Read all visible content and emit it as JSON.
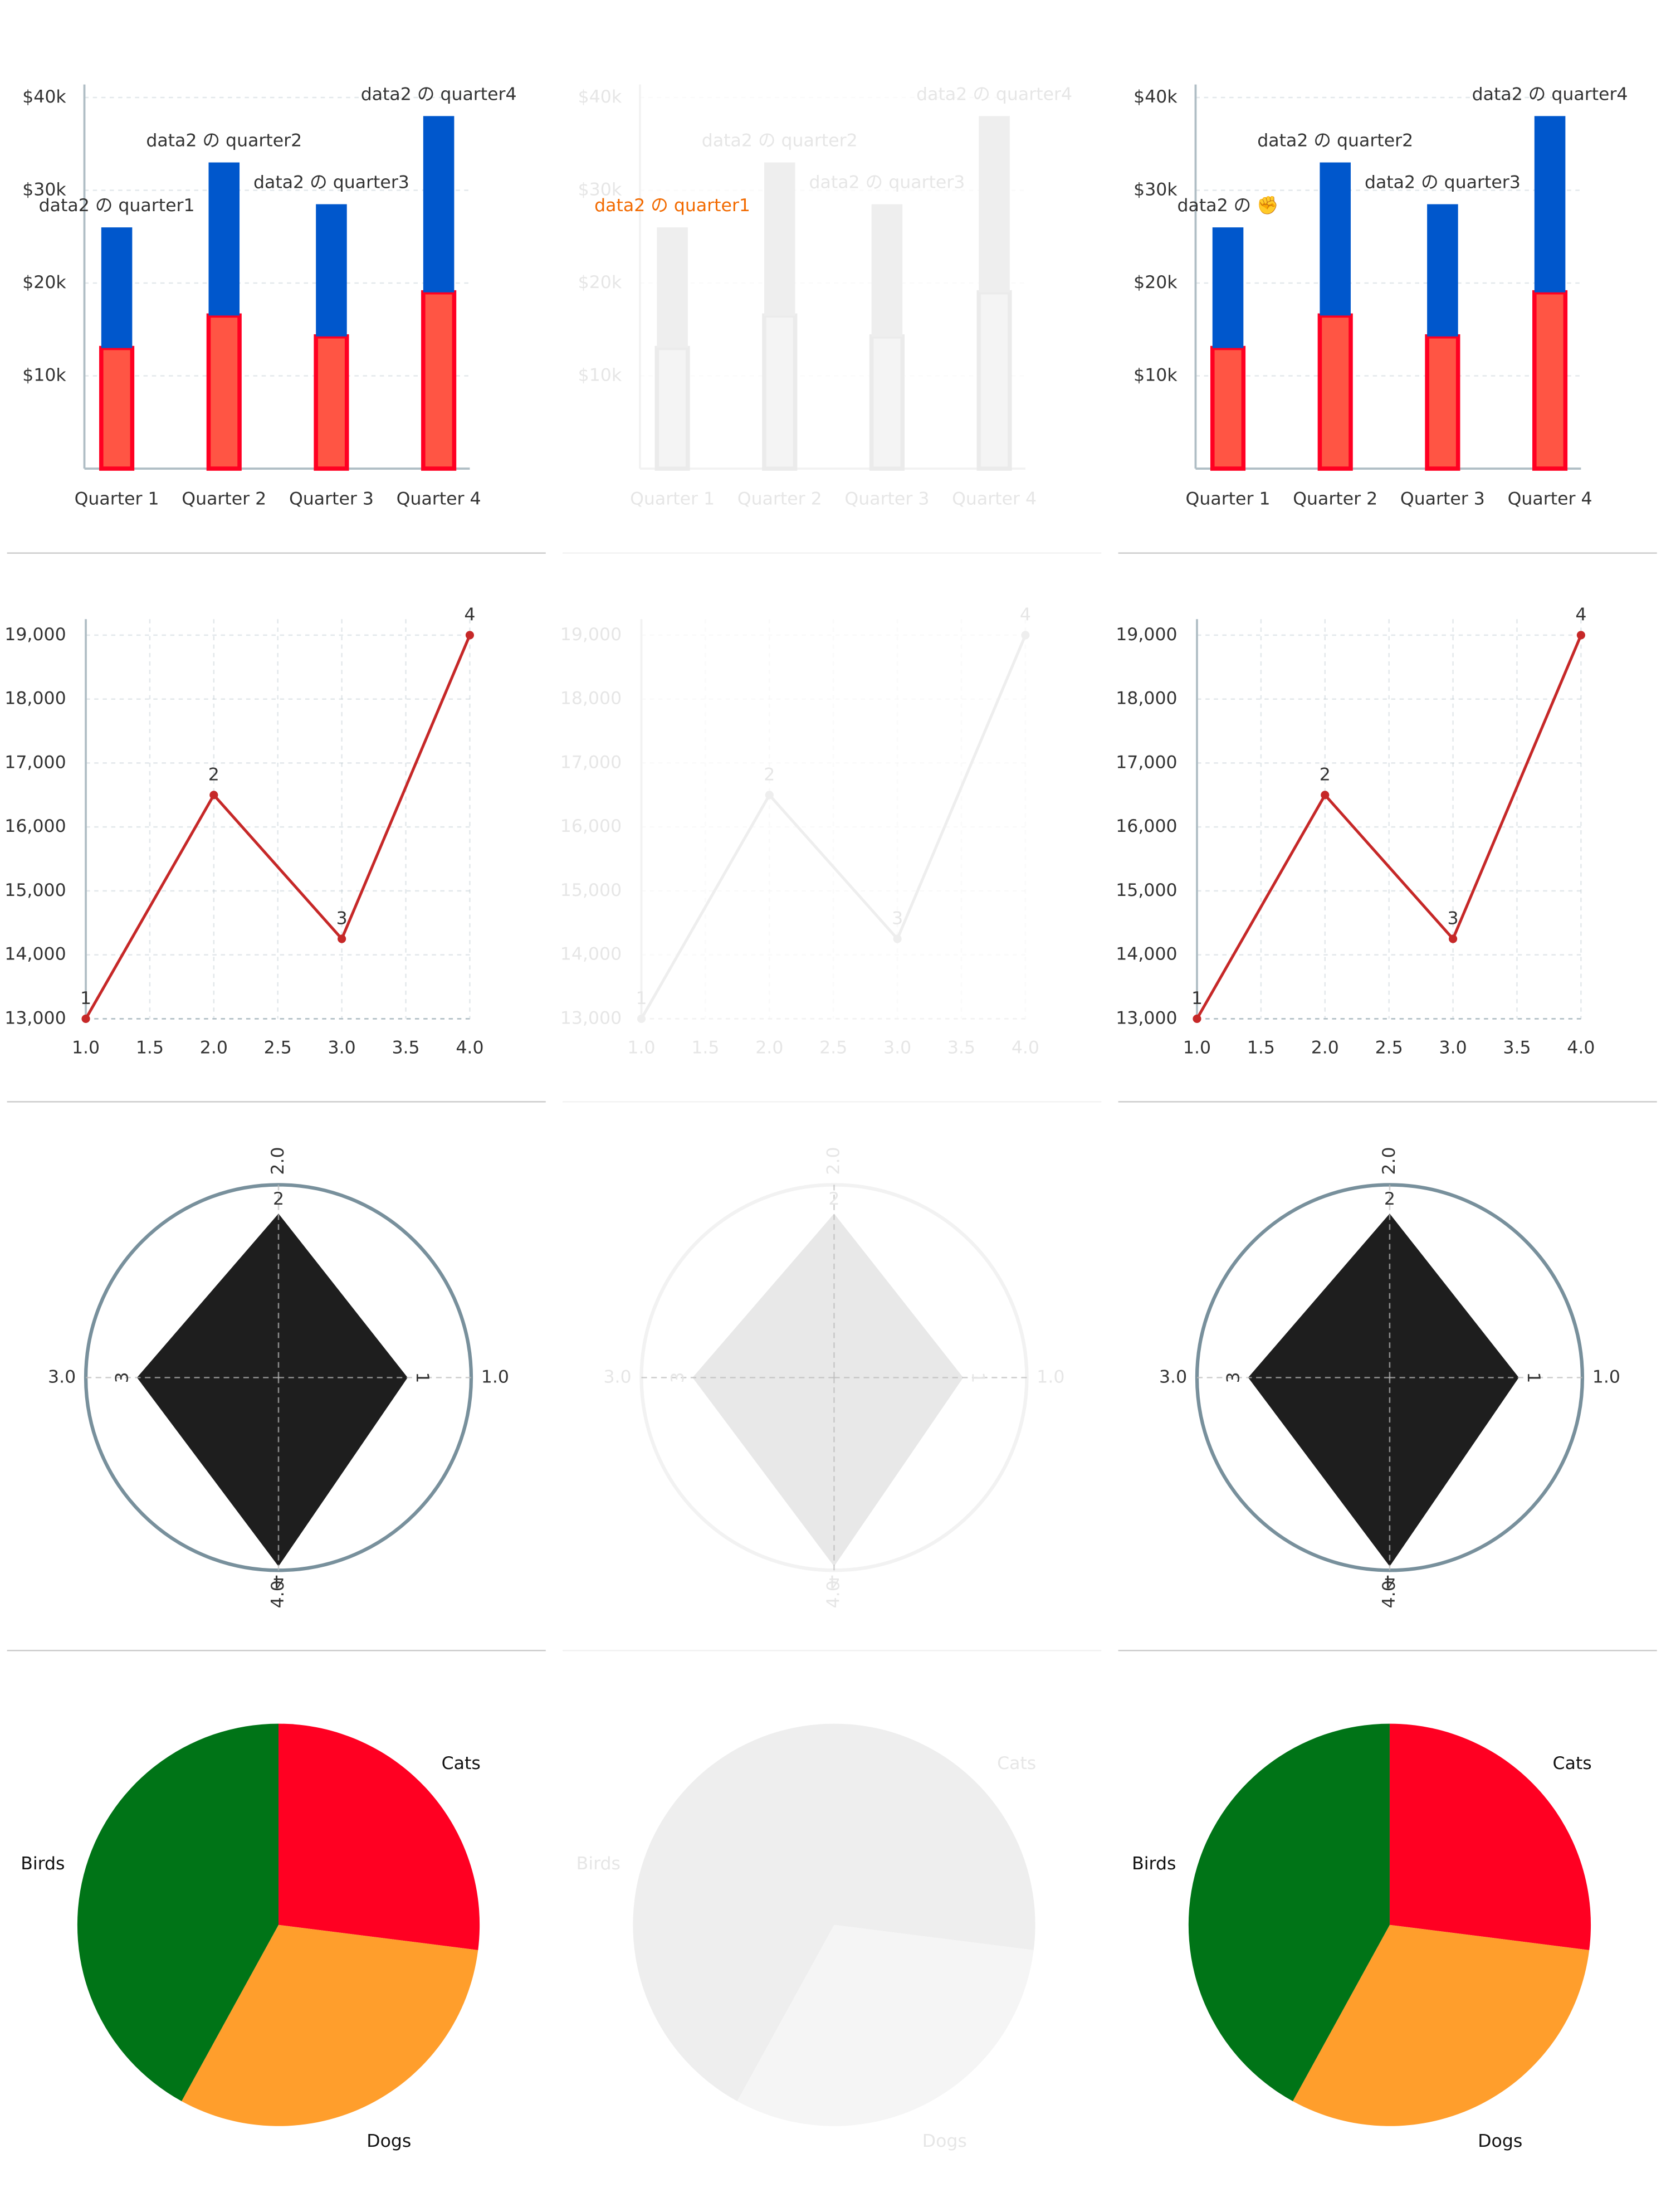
{
  "chart_data": [
    {
      "type": "bar",
      "categories": [
        "Quarter 1",
        "Quarter 2",
        "Quarter 3",
        "Quarter 4"
      ],
      "series": [
        {
          "color": "#ff5544",
          "stroke": "#ff0022",
          "values": [
            13000,
            16500,
            14250,
            19000
          ]
        },
        {
          "color": "#0057cc",
          "values": [
            13000,
            16500,
            14250,
            19000
          ]
        }
      ],
      "annotations": [
        "data2 の quarter1",
        "data2 の quarter2",
        "data2 の quarter3",
        "data2 の quarter4"
      ],
      "ylim": [
        0,
        41400
      ],
      "yticks": [
        {
          "value": 10000,
          "label": "$10k"
        },
        {
          "value": 20000,
          "label": "$20k"
        },
        {
          "value": 30000,
          "label": "$30k"
        },
        {
          "value": 40000,
          "label": "$40k"
        }
      ],
      "grid": true,
      "text_color": "#333333",
      "axis_color": "#b0bec5"
    },
    {
      "type": "bar",
      "categories": [
        "Quarter 1",
        "Quarter 2",
        "Quarter 3",
        "Quarter 4"
      ],
      "series": [
        {
          "color": "#f4f4f4",
          "stroke": "#ebebeb",
          "values": [
            13000,
            16500,
            14250,
            19000
          ]
        },
        {
          "color": "#eeeeee",
          "values": [
            13000,
            16500,
            14250,
            19000
          ]
        }
      ],
      "annotations": [
        "data2 の quarter1",
        "data2 の quarter2",
        "data2 の quarter3",
        "data2 の quarter4"
      ],
      "annotation_colors": [
        "#f26a00",
        "#e6e6e6",
        "#e6e6e6",
        "#e6e6e6"
      ],
      "ylim": [
        0,
        41400
      ],
      "yticks": [
        {
          "value": 10000,
          "label": "$10k"
        },
        {
          "value": 20000,
          "label": "$20k"
        },
        {
          "value": 30000,
          "label": "$30k"
        },
        {
          "value": 40000,
          "label": "$40k"
        }
      ],
      "grid": true,
      "text_color": "#e6e6e6",
      "axis_color": "#f2f2f2"
    },
    {
      "type": "bar",
      "categories": [
        "Quarter 1",
        "Quarter 2",
        "Quarter 3",
        "Quarter 4"
      ],
      "series": [
        {
          "color": "#ff5544",
          "stroke": "#ff0022",
          "values": [
            13000,
            16500,
            14250,
            19000
          ]
        },
        {
          "color": "#0057cc",
          "values": [
            13000,
            16500,
            14250,
            19000
          ]
        }
      ],
      "annotations": [
        "data2 の ✊",
        "data2 の quarter2",
        "data2 の quarter3",
        "data2 の quarter4"
      ],
      "ylim": [
        0,
        41400
      ],
      "yticks": [
        {
          "value": 10000,
          "label": "$10k"
        },
        {
          "value": 20000,
          "label": "$20k"
        },
        {
          "value": 30000,
          "label": "$30k"
        },
        {
          "value": 40000,
          "label": "$40k"
        }
      ],
      "grid": true,
      "text_color": "#333333",
      "axis_color": "#b0bec5"
    },
    {
      "type": "line",
      "x": [
        1,
        2,
        3,
        4
      ],
      "values": [
        13000,
        16500,
        14250,
        19000
      ],
      "point_labels": [
        "1",
        "2",
        "3",
        "4"
      ],
      "xlim": [
        1,
        4
      ],
      "xticks": [
        {
          "value": 1,
          "label": "1.0"
        },
        1.5,
        {
          "value": 2,
          "label": "2.0"
        },
        2.5,
        {
          "value": 3,
          "label": "3.0"
        },
        3.5,
        {
          "value": 4,
          "label": "4.0"
        }
      ],
      "ylim": [
        13000,
        19250
      ],
      "yticks": [
        {
          "value": 13000,
          "label": "13,000"
        },
        {
          "value": 14000,
          "label": "14,000"
        },
        {
          "value": 15000,
          "label": "15,000"
        },
        {
          "value": 16000,
          "label": "16,000"
        },
        {
          "value": 17000,
          "label": "17,000"
        },
        {
          "value": 18000,
          "label": "18,000"
        },
        {
          "value": 19000,
          "label": "19,000"
        }
      ],
      "color": "#c62828",
      "grid": true,
      "text_color": "#333333",
      "axis_color": "#b0bec5"
    },
    {
      "type": "line",
      "x": [
        1,
        2,
        3,
        4
      ],
      "values": [
        13000,
        16500,
        14250,
        19000
      ],
      "point_labels": [
        "1",
        "2",
        "3",
        "4"
      ],
      "xlim": [
        1,
        4
      ],
      "xticks": [
        {
          "value": 1,
          "label": "1.0"
        },
        1.5,
        {
          "value": 2,
          "label": "2.0"
        },
        2.5,
        {
          "value": 3,
          "label": "3.0"
        },
        3.5,
        {
          "value": 4,
          "label": "4.0"
        }
      ],
      "ylim": [
        13000,
        19250
      ],
      "yticks": [
        {
          "value": 13000,
          "label": "13,000"
        },
        {
          "value": 14000,
          "label": "14,000"
        },
        {
          "value": 15000,
          "label": "15,000"
        },
        {
          "value": 16000,
          "label": "16,000"
        },
        {
          "value": 17000,
          "label": "17,000"
        },
        {
          "value": 18000,
          "label": "18,000"
        },
        {
          "value": 19000,
          "label": "19,000"
        }
      ],
      "color": "#eeeeee",
      "grid": true,
      "text_color": "#e6e6e6",
      "axis_color": "#f2f2f2"
    },
    {
      "type": "line",
      "x": [
        1,
        2,
        3,
        4
      ],
      "values": [
        13000,
        16500,
        14250,
        19000
      ],
      "point_labels": [
        "1",
        "2",
        "3",
        "4"
      ],
      "xlim": [
        1,
        4
      ],
      "xticks": [
        {
          "value": 1,
          "label": "1.0"
        },
        1.5,
        {
          "value": 2,
          "label": "2.0"
        },
        2.5,
        {
          "value": 3,
          "label": "3.0"
        },
        3.5,
        {
          "value": 4,
          "label": "4.0"
        }
      ],
      "ylim": [
        13000,
        19250
      ],
      "yticks": [
        {
          "value": 13000,
          "label": "13,000"
        },
        {
          "value": 14000,
          "label": "14,000"
        },
        {
          "value": 15000,
          "label": "15,000"
        },
        {
          "value": 16000,
          "label": "16,000"
        },
        {
          "value": 17000,
          "label": "17,000"
        },
        {
          "value": 18000,
          "label": "18,000"
        },
        {
          "value": 19000,
          "label": "19,000"
        }
      ],
      "color": "#c62828",
      "grid": true,
      "text_color": "#333333",
      "axis_color": "#b0bec5"
    },
    {
      "type": "radar",
      "theta": [
        1,
        2,
        3,
        4
      ],
      "values": [
        13000,
        16500,
        14250,
        19000
      ],
      "point_labels": [
        "1",
        "2",
        "3",
        "4"
      ],
      "thetaticks": [
        {
          "value": 1,
          "label": "1.0"
        },
        {
          "value": 2,
          "label": "2.0"
        },
        {
          "value": 3,
          "label": "3.0"
        },
        {
          "value": 4,
          "label": "4.0"
        }
      ],
      "rlim": [
        0,
        19400
      ],
      "color": "#1e1e1e",
      "text_color": "#333333",
      "axis_color": "#78909c"
    },
    {
      "type": "radar",
      "theta": [
        1,
        2,
        3,
        4
      ],
      "values": [
        13000,
        16500,
        14250,
        19000
      ],
      "point_labels": [
        "1",
        "2",
        "3",
        "4"
      ],
      "thetaticks": [
        {
          "value": 1,
          "label": "1.0"
        },
        {
          "value": 2,
          "label": "2.0"
        },
        {
          "value": 3,
          "label": "3.0"
        },
        {
          "value": 4,
          "label": "4.0"
        }
      ],
      "rlim": [
        0,
        19400
      ],
      "color": "#e8e8e8",
      "text_color": "#e6e6e6",
      "axis_color": "#f2f2f2"
    },
    {
      "type": "radar",
      "theta": [
        1,
        2,
        3,
        4
      ],
      "values": [
        13000,
        16500,
        14250,
        19000
      ],
      "point_labels": [
        "1",
        "2",
        "3",
        "4"
      ],
      "thetaticks": [
        {
          "value": 1,
          "label": "1.0"
        },
        {
          "value": 2,
          "label": "2.0"
        },
        {
          "value": 3,
          "label": "3.0"
        },
        {
          "value": 4,
          "label": "4.0"
        }
      ],
      "rlim": [
        0,
        19400
      ],
      "color": "#1e1e1e",
      "text_color": "#333333",
      "axis_color": "#78909c"
    },
    {
      "type": "pie",
      "categories": [
        "Cats",
        "Dogs",
        "Birds"
      ],
      "values": [
        27,
        31,
        42
      ],
      "colors": [
        "#ff0022",
        "#ff9e2c",
        "#007417"
      ],
      "text_color": "#111111"
    },
    {
      "type": "pie",
      "categories": [
        "Cats",
        "Dogs",
        "Birds"
      ],
      "values": [
        27,
        31,
        42
      ],
      "colors": [
        "#eeeeee",
        "#f5f5f5",
        "#eeeeee"
      ],
      "text_color": "#e6e6e6"
    },
    {
      "type": "pie",
      "categories": [
        "Cats",
        "Dogs",
        "Birds"
      ],
      "values": [
        27,
        31,
        42
      ],
      "colors": [
        "#ff0022",
        "#ff9e2c",
        "#007417"
      ],
      "text_color": "#111111"
    }
  ]
}
